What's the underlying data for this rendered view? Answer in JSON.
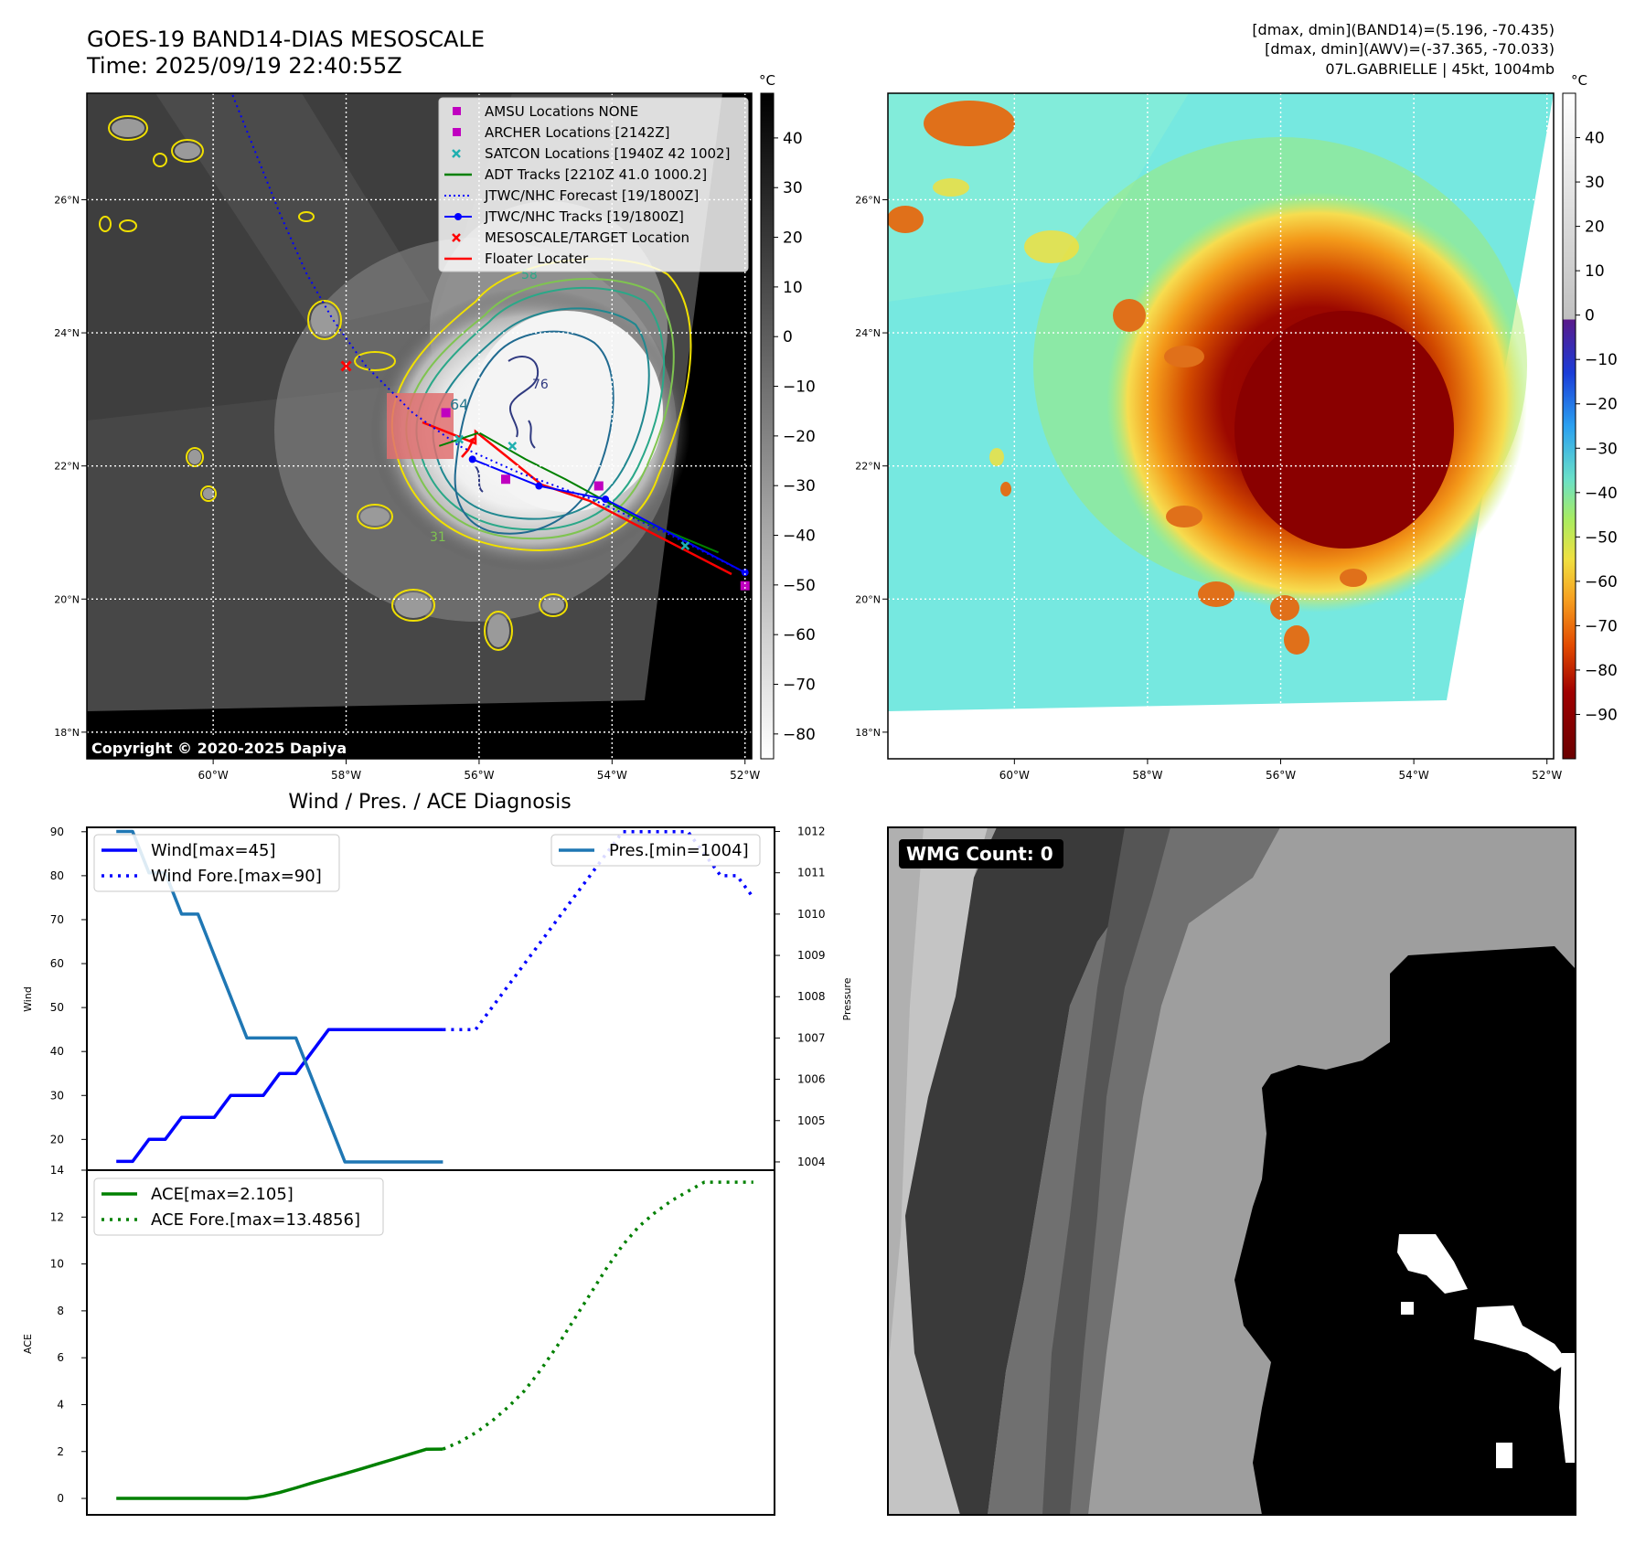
{
  "header": {
    "title_line1": "GOES-19 BAND14-DIAS MESOSCALE",
    "title_line2": "Time: 2025/09/19 22:40:55Z",
    "stats_line1": "[dmax, dmin](BAND14)=(5.196, -70.435)",
    "stats_line2": "[dmax, dmin](AWV)=(-37.365, -70.033)",
    "stats_line3": "07L.GABRIELLE | 45kt, 1004mb"
  },
  "map_axes": {
    "lat_labels": [
      "26°N",
      "24°N",
      "22°N",
      "20°N",
      "18°N"
    ],
    "lat_values": [
      26,
      24,
      22,
      20,
      18
    ],
    "lon_labels": [
      "60°W",
      "58°W",
      "56°W",
      "54°W",
      "52°W"
    ],
    "lon_values": [
      -60,
      -58,
      -56,
      -54,
      -52
    ],
    "lat_range": [
      17.6,
      27.6
    ],
    "lon_range": [
      -61.9,
      -51.9
    ]
  },
  "ir_panel": {
    "legend": [
      {
        "label": "AMSU Locations NONE",
        "marker": "square",
        "color": "#c000c0"
      },
      {
        "label": "ARCHER Locations [2142Z]",
        "marker": "square",
        "color": "#c000c0"
      },
      {
        "label": "SATCON Locations [1940Z 42 1002]",
        "marker": "x",
        "color": "#20b0b0"
      },
      {
        "label": "ADT Tracks [2210Z 41.0 1000.2]",
        "marker": "line",
        "color": "#008000"
      },
      {
        "label": "JTWC/NHC Forecast [19/1800Z]",
        "marker": "dotted",
        "color": "#0000ff"
      },
      {
        "label": "JTWC/NHC Tracks [19/1800Z]",
        "marker": "line-dot",
        "color": "#0000ff"
      },
      {
        "label": "MESOSCALE/TARGET Location",
        "marker": "x",
        "color": "#ff0000"
      },
      {
        "label": "Floater Locater",
        "marker": "line",
        "color": "#ff0000"
      }
    ],
    "contour_labels": [
      "64",
      "76",
      "31",
      "58"
    ],
    "copyright": "Copyright © 2020-2025 Dapiya",
    "colorbar_unit": "°C",
    "colorbar_ticks": [
      "40",
      "30",
      "20",
      "10",
      "0",
      "−10",
      "−20",
      "−30",
      "−40",
      "−50",
      "−60",
      "−70",
      "−80"
    ],
    "colorbar_values": [
      40,
      30,
      20,
      10,
      0,
      -10,
      -20,
      -30,
      -40,
      -50,
      -60,
      -70,
      -80
    ],
    "colorbar_range": [
      49,
      -85
    ],
    "forecast_track": [
      [
        -59.8,
        27.8
      ],
      [
        -59.4,
        26.8
      ],
      [
        -59.0,
        25.8
      ],
      [
        -58.6,
        24.9
      ],
      [
        -58.2,
        24.2
      ],
      [
        -57.7,
        23.5
      ],
      [
        -57.0,
        22.8
      ],
      [
        -56.3,
        22.3
      ],
      [
        -55.4,
        21.9
      ],
      [
        -54.3,
        21.5
      ],
      [
        -53.2,
        21.0
      ],
      [
        -52.0,
        20.4
      ]
    ],
    "best_track": [
      [
        -56.1,
        22.1
      ],
      [
        -55.1,
        21.7
      ],
      [
        -54.1,
        21.5
      ],
      [
        -52.0,
        20.4
      ]
    ],
    "adt_track": [
      [
        -56.6,
        22.3
      ],
      [
        -56.0,
        22.5
      ],
      [
        -55.3,
        22.1
      ],
      [
        -54.7,
        21.8
      ],
      [
        -53.6,
        21.2
      ],
      [
        -52.4,
        20.7
      ]
    ],
    "archer_points": [
      [
        -56.5,
        22.8
      ],
      [
        -55.6,
        21.8
      ],
      [
        -54.2,
        21.7
      ],
      [
        -52.0,
        20.2
      ]
    ],
    "satcon_points": [
      [
        -56.3,
        22.4
      ],
      [
        -55.5,
        22.3
      ],
      [
        -52.9,
        20.8
      ]
    ],
    "target_point": [
      -58.0,
      23.5
    ]
  },
  "wv_panel": {
    "colorbar_unit": "°C",
    "colorbar_ticks": [
      "40",
      "30",
      "20",
      "10",
      "0",
      "−10",
      "−20",
      "−30",
      "−40",
      "−50",
      "−60",
      "−70",
      "−80",
      "−90"
    ],
    "colorbar_values": [
      40,
      30,
      20,
      10,
      0,
      -10,
      -20,
      -30,
      -40,
      -50,
      -60,
      -70,
      -80,
      -90
    ],
    "colorbar_range": [
      50,
      -100
    ]
  },
  "chart_data": [
    {
      "type": "line",
      "title": "Wind / Pres. / ACE Diagnosis",
      "ylabel": "Wind",
      "ylabel_right": "Pressure",
      "ylim": [
        13,
        91
      ],
      "ylim_right": [
        1003.8,
        1012.1
      ],
      "yticks": [
        20,
        30,
        40,
        50,
        60,
        70,
        80,
        90
      ],
      "yticks_right": [
        1004,
        1005,
        1006,
        1007,
        1008,
        1009,
        1010,
        1011,
        1012
      ],
      "x": [
        0,
        1,
        2,
        3,
        4,
        5,
        6,
        7,
        8,
        9,
        10,
        11,
        12,
        13,
        14,
        15,
        16,
        17,
        18,
        19,
        20,
        21,
        22,
        23,
        24,
        25,
        26,
        27,
        28,
        29,
        30,
        31,
        32,
        33,
        34,
        35,
        36,
        37,
        38,
        39
      ],
      "xlim": [
        -1.8,
        40.3
      ],
      "series": [
        {
          "name": "Wind[max=45]",
          "axis": "left",
          "style": "solid",
          "color": "#0000ff",
          "x": [
            0,
            1,
            2,
            3,
            4,
            5,
            6,
            7,
            8,
            9,
            10,
            11,
            12,
            13,
            14,
            15,
            16,
            17,
            18,
            19,
            20
          ],
          "values": [
            15,
            15,
            20,
            20,
            25,
            25,
            25,
            30,
            30,
            30,
            35,
            35,
            40,
            45,
            45,
            45,
            45,
            45,
            45,
            45,
            45
          ]
        },
        {
          "name": "Wind Fore.[max=90]",
          "axis": "left",
          "style": "dotted",
          "color": "#0000ff",
          "x": [
            20,
            21,
            22,
            23,
            24,
            25,
            26,
            27,
            28,
            29,
            30,
            31,
            32,
            33,
            34,
            35,
            36,
            37,
            38,
            39
          ],
          "values": [
            45,
            45,
            45,
            50,
            55,
            60,
            65,
            70,
            75,
            80,
            85,
            90,
            90,
            90,
            90,
            90,
            85,
            80,
            80,
            75
          ]
        },
        {
          "name": "Pres.[min=1004]",
          "axis": "right",
          "style": "solid",
          "color": "#1f77b4",
          "x": [
            0,
            1,
            2,
            3,
            4,
            5,
            6,
            7,
            8,
            9,
            10,
            11,
            12,
            13,
            14,
            15,
            16,
            17,
            18,
            19,
            20
          ],
          "values": [
            1012,
            1012,
            1011,
            1011,
            1010,
            1010,
            1009,
            1008,
            1007,
            1007,
            1007,
            1007,
            1006,
            1005,
            1004,
            1004,
            1004,
            1004,
            1004,
            1004,
            1004
          ]
        }
      ]
    },
    {
      "type": "line",
      "ylabel": "ACE",
      "ylim": [
        -0.7,
        14
      ],
      "yticks": [
        0,
        2,
        4,
        6,
        8,
        10,
        12,
        14
      ],
      "xlim": [
        -1.8,
        40.3
      ],
      "series": [
        {
          "name": "ACE[max=2.105]",
          "style": "solid",
          "color": "#008000",
          "x": [
            0,
            1,
            2,
            3,
            4,
            5,
            6,
            7,
            8,
            9,
            10,
            11,
            12,
            13,
            14,
            15,
            16,
            17,
            18,
            19,
            20
          ],
          "values": [
            0,
            0,
            0,
            0,
            0,
            0,
            0,
            0,
            0,
            0.09,
            0.25,
            0.45,
            0.66,
            0.86,
            1.06,
            1.26,
            1.47,
            1.68,
            1.89,
            2.1,
            2.105
          ]
        },
        {
          "name": "ACE Fore.[max=13.4856]",
          "style": "dotted",
          "color": "#008000",
          "x": [
            20,
            21,
            22,
            23,
            24,
            25,
            26,
            27,
            28,
            29,
            30,
            31,
            32,
            33,
            34,
            35,
            36,
            37,
            38,
            39
          ],
          "values": [
            2.105,
            2.4,
            2.8,
            3.3,
            3.9,
            4.6,
            5.5,
            6.5,
            7.6,
            8.7,
            9.8,
            10.8,
            11.6,
            12.2,
            12.7,
            13.1,
            13.49,
            13.49,
            13.49,
            13.49
          ]
        }
      ]
    }
  ],
  "wmg_panel": {
    "count_label": "WMG Count: 0"
  }
}
